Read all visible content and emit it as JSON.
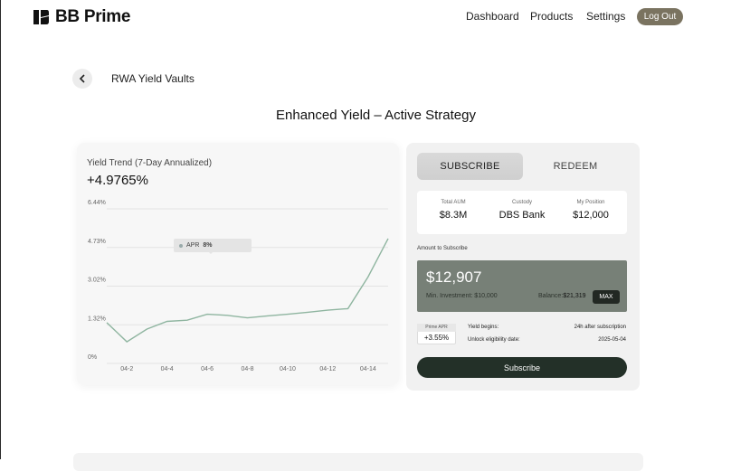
{
  "header": {
    "brand": "BB Prime",
    "nav": [
      "Dashboard",
      "Products",
      "Settings"
    ],
    "logout_label": "Log Out"
  },
  "breadcrumb": {
    "label": "RWA Yield Vaults"
  },
  "page_title": "Enhanced Yield – Active Strategy",
  "chart_card": {
    "title": "Yield Trend (7-Day Annualized)",
    "value": "+4.9765%",
    "tooltip_label": "APR",
    "tooltip_value": "8%"
  },
  "chart_data": {
    "type": "line",
    "x": [
      "04-1",
      "04-2",
      "04-3",
      "04-4",
      "04-5",
      "04-6",
      "04-7",
      "04-8",
      "04-9",
      "04-10",
      "04-11",
      "04-12",
      "04-13",
      "04-14",
      "04-15"
    ],
    "y": [
      1.4,
      0.6,
      1.13,
      1.45,
      1.5,
      1.75,
      1.7,
      1.6,
      1.68,
      1.75,
      1.83,
      1.92,
      1.98,
      3.3,
      4.9
    ],
    "yticks": [
      "6.44%",
      "4.73%",
      "3.02%",
      "1.32%",
      "0%"
    ],
    "xticks": [
      "04-2",
      "04-4",
      "04-6",
      "04-8",
      "04-10",
      "04-12",
      "04-14"
    ],
    "ylim": [
      0,
      6.44
    ],
    "grid": true,
    "line_color": "#8fb5a0"
  },
  "subscribe": {
    "tab_subscribe": "SUBSCRIBE",
    "tab_redeem": "REDEEM",
    "stats": [
      {
        "label": "Total AUM",
        "value": "$8.3M"
      },
      {
        "label": "Custody",
        "value": "DBS Bank"
      },
      {
        "label": "My Position",
        "value": "$12,000"
      }
    ],
    "amount_label": "Amount to Subscribe",
    "amount_value": "$12,907",
    "min_investment": "Min. Investment: $10,000",
    "balance_label": "Balance:",
    "balance_value": "$21,319",
    "max_label": "MAX",
    "apr_label": "Prime APR",
    "apr_value": "+3.55%",
    "yield_begins_label": "Yield begins:",
    "yield_begins_value": "24h after subscription",
    "unlock_label": "Unlock eligibility date:",
    "unlock_value": "2025-05-04",
    "button_label": "Subscribe"
  },
  "colors": {
    "accent": "#233028",
    "amount_box": "#778077",
    "logout": "#7a7360"
  }
}
